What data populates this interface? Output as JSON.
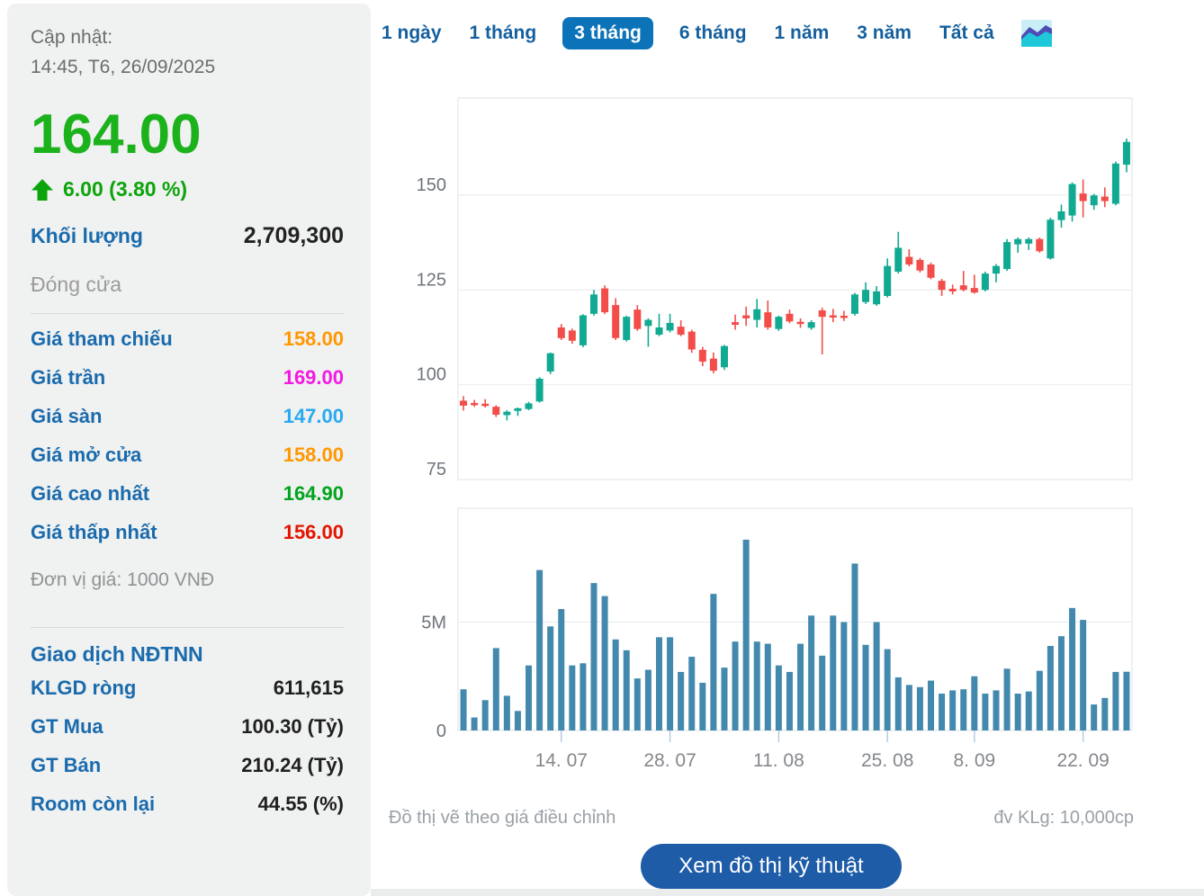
{
  "sidebar": {
    "updated_label": "Cập nhật:",
    "updated_time": "14:45, T6, 26/09/2025",
    "price": "164.00",
    "change": "6.00 (3.80 %)",
    "volume_label": "Khối lượng",
    "volume_value": "2,709,300",
    "close_label": "Đóng cửa",
    "price_rows": [
      {
        "label": "Giá tham chiếu",
        "value": "158.00",
        "color": "#ff9800"
      },
      {
        "label": "Giá trần",
        "value": "169.00",
        "color": "#f318e3"
      },
      {
        "label": "Giá sàn",
        "value": "147.00",
        "color": "#28a9f1"
      },
      {
        "label": "Giá mở cửa",
        "value": "158.00",
        "color": "#ff9800"
      },
      {
        "label": "Giá cao nhất",
        "value": "164.90",
        "color": "#00a41c"
      },
      {
        "label": "Giá thấp nhất",
        "value": "156.00",
        "color": "#e51400"
      }
    ],
    "unit_note": "Đơn vị giá: 1000 VNĐ",
    "foreign_title": "Giao dịch NĐTNN",
    "foreign_rows": [
      {
        "label": "KLGD ròng",
        "value": "611,615"
      },
      {
        "label": "GT Mua",
        "value": "100.30 (Tỷ)"
      },
      {
        "label": "GT Bán",
        "value": "210.24 (Tỷ)"
      },
      {
        "label": "Room còn lại",
        "value": "44.55 (%)"
      }
    ]
  },
  "tabs": {
    "items": [
      "1 ngày",
      "1 tháng",
      "3 tháng",
      "6 tháng",
      "1 năm",
      "3 năm",
      "Tất cả"
    ],
    "selected": "3 tháng",
    "icon": "area-chart-icon",
    "selected_bg": "#0d73b8",
    "text_color": "#155f9e"
  },
  "chart_data": {
    "type": "candlestick+volume",
    "title": "",
    "xlabel": "",
    "ylabel": "",
    "price_axis": {
      "tick_values": [
        75,
        100,
        125,
        150
      ],
      "range": [
        71,
        176
      ]
    },
    "volume_axis": {
      "tick_values": [
        0,
        5000000
      ],
      "tick_labels": [
        "0",
        "5M"
      ],
      "range": [
        0,
        10500000
      ]
    },
    "x_tick_labels": [
      "14. 07",
      "28. 07",
      "11. 08",
      "25. 08",
      "8. 09",
      "22. 09"
    ],
    "x_tick_indices": [
      9,
      19,
      29,
      39,
      47,
      57
    ],
    "grid": true,
    "up_color": "#10a991",
    "down_color": "#f24d49",
    "volume_color": "#4389ae",
    "columns": [
      "date",
      "open",
      "high",
      "low",
      "close",
      "volume"
    ],
    "candles": [
      [
        "01.07",
        95.8,
        97.0,
        93.2,
        94.5,
        1900000
      ],
      [
        "02.07",
        95.2,
        96.0,
        94.2,
        94.8,
        600000
      ],
      [
        "03.07",
        95.0,
        96.2,
        94.0,
        94.6,
        1400000
      ],
      [
        "04.07",
        94.2,
        94.6,
        91.5,
        92.1,
        3800000
      ],
      [
        "07.07",
        92.0,
        93.3,
        90.6,
        92.9,
        1600000
      ],
      [
        "08.07",
        93.1,
        94.0,
        91.8,
        93.8,
        900000
      ],
      [
        "09.07",
        93.6,
        95.5,
        93.3,
        95.1,
        3000000
      ],
      [
        "10.07",
        95.6,
        102.0,
        95.3,
        101.6,
        7400000
      ],
      [
        "11.07",
        103.5,
        108.5,
        102.8,
        108.3,
        4800000
      ],
      [
        "14.07",
        115.1,
        116.0,
        111.8,
        112.3,
        5600000
      ],
      [
        "15.07",
        114.3,
        114.8,
        110.8,
        111.6,
        3000000
      ],
      [
        "16.07",
        110.4,
        118.6,
        109.9,
        118.3,
        3100000
      ],
      [
        "17.07",
        118.7,
        125.0,
        118.2,
        123.8,
        6800000
      ],
      [
        "18.07",
        125.4,
        126.2,
        118.6,
        119.1,
        6200000
      ],
      [
        "21.07",
        121.0,
        122.8,
        111.8,
        112.3,
        4200000
      ],
      [
        "22.07",
        111.8,
        118.2,
        111.4,
        117.9,
        3700000
      ],
      [
        "23.07",
        119.8,
        121.0,
        114.2,
        114.7,
        2400000
      ],
      [
        "24.07",
        115.5,
        117.5,
        110.0,
        117.1,
        2800000
      ],
      [
        "25.07",
        113.2,
        118.7,
        112.8,
        115.1,
        4300000
      ],
      [
        "28.07",
        114.3,
        118.7,
        113.8,
        116.3,
        4300000
      ],
      [
        "29.07",
        115.3,
        117.0,
        112.8,
        113.2,
        2700000
      ],
      [
        "30.07",
        114.0,
        114.5,
        108.4,
        109.3,
        3400000
      ],
      [
        "31.07",
        109.2,
        110.0,
        104.9,
        106.1,
        2200000
      ],
      [
        "01.08",
        106.9,
        108.5,
        103.0,
        103.7,
        6300000
      ],
      [
        "04.08",
        104.6,
        110.5,
        103.9,
        110.2,
        2900000
      ],
      [
        "05.08",
        116.5,
        118.5,
        114.5,
        115.8,
        4100000
      ],
      [
        "06.08",
        118.3,
        120.6,
        115.5,
        117.5,
        8800000
      ],
      [
        "07.08",
        117.1,
        122.6,
        115.1,
        119.9,
        4100000
      ],
      [
        "08.08",
        119.1,
        122.2,
        114.5,
        115.1,
        4000000
      ],
      [
        "11.08",
        114.7,
        118.2,
        114.2,
        117.9,
        3000000
      ],
      [
        "12.08",
        118.7,
        119.8,
        116.2,
        116.7,
        2700000
      ],
      [
        "13.08",
        116.6,
        117.5,
        115.0,
        116.0,
        4000000
      ],
      [
        "14.08",
        115.0,
        117.0,
        114.5,
        116.5,
        5300000
      ],
      [
        "15.08",
        119.6,
        120.3,
        108.0,
        117.9,
        3450000
      ],
      [
        "18.08",
        118.3,
        120.0,
        116.5,
        117.7,
        5300000
      ],
      [
        "19.08",
        118.2,
        119.5,
        116.8,
        117.8,
        5000000
      ],
      [
        "20.08",
        118.7,
        124.2,
        118.2,
        123.8,
        7700000
      ],
      [
        "21.08",
        121.8,
        127.0,
        121.3,
        125.0,
        3950000
      ],
      [
        "22.08",
        121.2,
        126.0,
        120.8,
        124.6,
        5000000
      ],
      [
        "25.08",
        123.4,
        133.3,
        123.0,
        131.3,
        3750000
      ],
      [
        "26.08",
        129.8,
        140.3,
        129.3,
        136.1,
        2450000
      ],
      [
        "27.08",
        133.7,
        135.7,
        131.2,
        131.7,
        2100000
      ],
      [
        "28.08",
        132.9,
        133.4,
        129.6,
        130.1,
        2000000
      ],
      [
        "29.08",
        131.7,
        132.2,
        127.8,
        128.2,
        2300000
      ],
      [
        "03.09",
        127.4,
        127.9,
        123.4,
        125.0,
        1700000
      ],
      [
        "04.09",
        125.3,
        126.4,
        123.8,
        124.6,
        1850000
      ],
      [
        "05.09",
        126.2,
        130.0,
        124.6,
        125.0,
        1900000
      ],
      [
        "08.09",
        125.5,
        129.0,
        124.0,
        124.3,
        2500000
      ],
      [
        "09.09",
        125.0,
        129.8,
        124.6,
        129.3,
        1700000
      ],
      [
        "10.09",
        129.3,
        131.8,
        127.0,
        131.3,
        1850000
      ],
      [
        "11.09",
        130.5,
        138.4,
        130.0,
        137.6,
        2850000
      ],
      [
        "12.09",
        137.0,
        138.8,
        134.8,
        138.4,
        1700000
      ],
      [
        "15.09",
        137.2,
        138.8,
        135.5,
        138.4,
        1800000
      ],
      [
        "16.09",
        138.4,
        138.8,
        134.8,
        135.2,
        2750000
      ],
      [
        "17.09",
        133.3,
        144.0,
        133.0,
        143.5,
        3900000
      ],
      [
        "18.09",
        143.4,
        147.5,
        141.4,
        145.7,
        4350000
      ],
      [
        "19.09",
        144.6,
        153.3,
        143.0,
        152.9,
        5650000
      ],
      [
        "22.09",
        150.4,
        154.1,
        144.1,
        148.4,
        5100000
      ],
      [
        "23.09",
        147.3,
        150.3,
        146.1,
        149.9,
        1200000
      ],
      [
        "24.09",
        149.6,
        152.0,
        146.8,
        148.4,
        1500000
      ],
      [
        "25.09",
        147.7,
        158.8,
        147.3,
        158.3,
        2700000
      ],
      [
        "26.09",
        158.0,
        164.9,
        156.0,
        164.0,
        2709300
      ]
    ]
  },
  "footer": {
    "left_note": "Đồ thị vẽ theo giá điều chỉnh",
    "right_note": "đv KLg: 10,000cp",
    "button_label": "Xem đồ thị kỹ thuật"
  },
  "colors": {
    "price_up_big": "#1cb21c",
    "label_blue": "#1a6bad",
    "sidebar_bg": "#f0f1f1",
    "button_bg": "#1e5ca8"
  }
}
